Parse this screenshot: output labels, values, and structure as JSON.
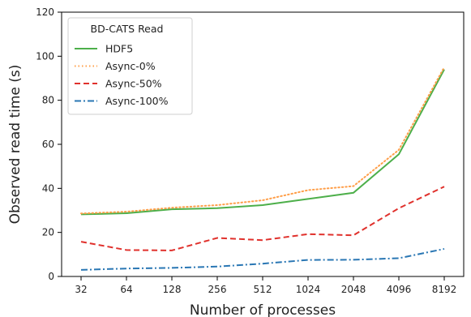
{
  "chart_data": {
    "type": "line",
    "title": "",
    "xlabel": "Number of processes",
    "ylabel": "Observed read time (s)",
    "categories": [
      "32",
      "64",
      "128",
      "256",
      "512",
      "1024",
      "2048",
      "4096",
      "8192"
    ],
    "ylim": [
      0,
      120
    ],
    "yticks": [
      "0",
      "20",
      "40",
      "60",
      "80",
      "100",
      "120"
    ],
    "grid": false,
    "legend": {
      "title": "BD-CATS Read",
      "position": "top-left"
    },
    "series": [
      {
        "name": "HDF5",
        "color": "#4daf4a",
        "style": "solid",
        "values": [
          28.2,
          28.7,
          30.5,
          31.0,
          32.4,
          35.2,
          38.0,
          55.5,
          94.0
        ]
      },
      {
        "name": "Async-0%",
        "color": "#ff9f4a",
        "style": "dotted",
        "values": [
          28.6,
          29.4,
          31.2,
          32.4,
          34.6,
          39.2,
          41.0,
          57.5,
          95.0
        ]
      },
      {
        "name": "Async-50%",
        "color": "#e0312c",
        "style": "dashed",
        "values": [
          15.8,
          12.0,
          11.8,
          17.5,
          16.5,
          19.2,
          18.7,
          31.0,
          40.8
        ]
      },
      {
        "name": "Async-100%",
        "color": "#2a77b4",
        "style": "dashdot",
        "values": [
          3.0,
          3.6,
          3.9,
          4.5,
          5.8,
          7.5,
          7.6,
          8.3,
          12.5
        ]
      }
    ]
  }
}
